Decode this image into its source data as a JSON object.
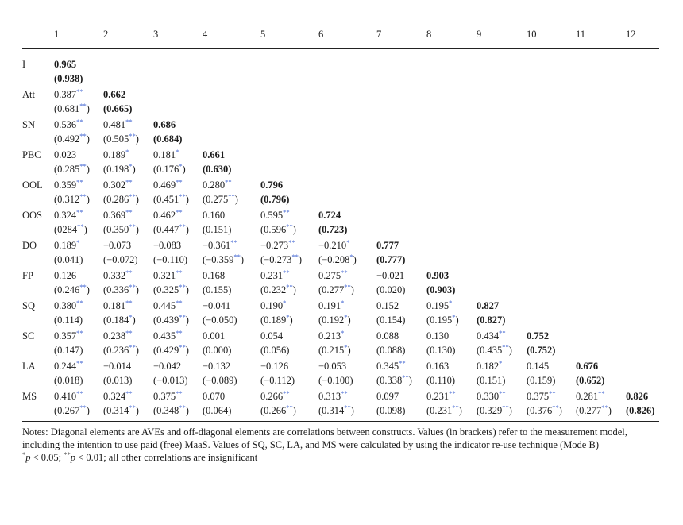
{
  "columns": [
    "",
    "1",
    "2",
    "3",
    "4",
    "5",
    "6",
    "7",
    "8",
    "9",
    "10",
    "11",
    "12"
  ],
  "rows": [
    {
      "label": "I",
      "cells": [
        {
          "v1": "0.965",
          "s1": "",
          "v2": "(0.938)",
          "s2": "",
          "bold": true
        }
      ]
    },
    {
      "label": "Att",
      "cells": [
        {
          "v1": "0.387",
          "s1": "**",
          "v2": "(0.681",
          "s2": "**",
          "close": ")"
        },
        {
          "v1": "0.662",
          "s1": "",
          "v2": "(0.665)",
          "s2": "",
          "bold": true
        }
      ]
    },
    {
      "label": "SN",
      "cells": [
        {
          "v1": "0.536",
          "s1": "**",
          "v2": "(0.492",
          "s2": "**",
          "close": ")"
        },
        {
          "v1": "0.481",
          "s1": "**",
          "v2": "(0.505",
          "s2": "**",
          "close": ")"
        },
        {
          "v1": "0.686",
          "s1": "",
          "v2": "(0.684)",
          "s2": "",
          "bold": true
        }
      ]
    },
    {
      "label": "PBC",
      "cells": [
        {
          "v1": "0.023",
          "s1": "",
          "v2": "(0.285",
          "s2": "**",
          "close": ")"
        },
        {
          "v1": "0.189",
          "s1": "*",
          "v2": "(0.198",
          "s2": "*",
          "close": ")"
        },
        {
          "v1": "0.181",
          "s1": "*",
          "v2": "(0.176",
          "s2": "*",
          "close": ")"
        },
        {
          "v1": "0.661",
          "s1": "",
          "v2": "(0.630)",
          "s2": "",
          "bold": true
        }
      ]
    },
    {
      "label": "OOL",
      "cells": [
        {
          "v1": "0.359",
          "s1": "**",
          "v2": "(0.312",
          "s2": "**",
          "close": ")"
        },
        {
          "v1": "0.302",
          "s1": "**",
          "v2": "(0.286",
          "s2": "**",
          "close": ")"
        },
        {
          "v1": "0.469",
          "s1": "**",
          "v2": "(0.451",
          "s2": "**",
          "close": ")"
        },
        {
          "v1": "0.280",
          "s1": "**",
          "v2": "(0.275",
          "s2": "**",
          "close": ")"
        },
        {
          "v1": "0.796",
          "s1": "",
          "v2": "(0.796)",
          "s2": "",
          "bold": true
        }
      ]
    },
    {
      "label": "OOS",
      "cells": [
        {
          "v1": "0.324",
          "s1": "**",
          "v2": "(0284",
          "s2": "**",
          "close": ")"
        },
        {
          "v1": "0.369",
          "s1": "**",
          "v2": "(0.350",
          "s2": "**",
          "close": ")"
        },
        {
          "v1": "0.462",
          "s1": "**",
          "v2": "(0.447",
          "s2": "**",
          "close": ")"
        },
        {
          "v1": "0.160",
          "s1": "",
          "v2": "(0.151)",
          "s2": ""
        },
        {
          "v1": "0.595",
          "s1": "**",
          "v2": "(0.596",
          "s2": "**",
          "close": ")"
        },
        {
          "v1": "0.724",
          "s1": "",
          "v2": "(0.723)",
          "s2": "",
          "bold": true
        }
      ]
    },
    {
      "label": "DO",
      "cells": [
        {
          "v1": "0.189",
          "s1": "*",
          "v2": "(0.041)",
          "s2": ""
        },
        {
          "v1": "−0.073",
          "s1": "",
          "v2": "(−0.072)",
          "s2": ""
        },
        {
          "v1": "−0.083",
          "s1": "",
          "v2": "(−0.110)",
          "s2": ""
        },
        {
          "v1": "−0.361",
          "s1": "**",
          "v2": "(−0.359",
          "s2": "**",
          "close": ")"
        },
        {
          "v1": "−0.273",
          "s1": "**",
          "v2": "(−0.273",
          "s2": "**",
          "close": ")"
        },
        {
          "v1": "−0.210",
          "s1": "*",
          "v2": "(−0.208",
          "s2": "*",
          "close": ")"
        },
        {
          "v1": "0.777",
          "s1": "",
          "v2": "(0.777)",
          "s2": "",
          "bold": true
        }
      ]
    },
    {
      "label": "FP",
      "cells": [
        {
          "v1": "0.126",
          "s1": "",
          "v2": "(0.246",
          "s2": "**",
          "close": ")"
        },
        {
          "v1": "0.332",
          "s1": "**",
          "v2": "(0.336",
          "s2": "**",
          "close": ")"
        },
        {
          "v1": "0.321",
          "s1": "**",
          "v2": "(0.325",
          "s2": "**",
          "close": ")"
        },
        {
          "v1": "0.168",
          "s1": "",
          "v2": "(0.155)",
          "s2": ""
        },
        {
          "v1": "0.231",
          "s1": "**",
          "v2": "(0.232",
          "s2": "**",
          "close": ")"
        },
        {
          "v1": "0.275",
          "s1": "**",
          "v2": "(0.277",
          "s2": "**",
          "close": ")"
        },
        {
          "v1": "−0.021",
          "s1": "",
          "v2": "(0.020)",
          "s2": ""
        },
        {
          "v1": "0.903",
          "s1": "",
          "v2": "(0.903)",
          "s2": "",
          "bold": true
        }
      ]
    },
    {
      "label": "SQ",
      "cells": [
        {
          "v1": "0.380",
          "s1": "**",
          "v2": "(0.114)",
          "s2": ""
        },
        {
          "v1": "0.181",
          "s1": "**",
          "v2": "(0.184",
          "s2": "*",
          "close": ")"
        },
        {
          "v1": "0.445",
          "s1": "**",
          "v2": "(0.439",
          "s2": "**",
          "close": ")"
        },
        {
          "v1": "−0.041",
          "s1": "",
          "v2": "(−0.050)",
          "s2": ""
        },
        {
          "v1": "0.190",
          "s1": "*",
          "v2": "(0.189",
          "s2": "*",
          "close": ")"
        },
        {
          "v1": "0.191",
          "s1": "*",
          "v2": "(0.192",
          "s2": "*",
          "close": ")"
        },
        {
          "v1": "0.152",
          "s1": "",
          "v2": "(0.154)",
          "s2": ""
        },
        {
          "v1": "0.195",
          "s1": "*",
          "v2": "(0.195",
          "s2": "*",
          "close": ")"
        },
        {
          "v1": "0.827",
          "s1": "",
          "v2": "(0.827)",
          "s2": "",
          "bold": true
        }
      ]
    },
    {
      "label": "SC",
      "cells": [
        {
          "v1": "0.357",
          "s1": "**",
          "v2": "(0.147)",
          "s2": ""
        },
        {
          "v1": "0.238",
          "s1": "**",
          "v2": "(0.236",
          "s2": "**",
          "close": ")"
        },
        {
          "v1": "0.435",
          "s1": "**",
          "v2": "(0.429",
          "s2": "**",
          "close": ")"
        },
        {
          "v1": "0.001",
          "s1": "",
          "v2": "(0.000)",
          "s2": ""
        },
        {
          "v1": "0.054",
          "s1": "",
          "v2": "(0.056)",
          "s2": ""
        },
        {
          "v1": "0.213",
          "s1": "*",
          "v2": "(0.215",
          "s2": "*",
          "close": ")"
        },
        {
          "v1": "0.088",
          "s1": "",
          "v2": "(0.088)",
          "s2": ""
        },
        {
          "v1": "0.130",
          "s1": "",
          "v2": "(0.130)",
          "s2": ""
        },
        {
          "v1": "0.434",
          "s1": "**",
          "v2": "(0.435",
          "s2": "**",
          "close": ")"
        },
        {
          "v1": "0.752",
          "s1": "",
          "v2": "(0.752)",
          "s2": "",
          "bold": true
        }
      ]
    },
    {
      "label": "LA",
      "cells": [
        {
          "v1": "0.244",
          "s1": "**",
          "v2": "(0.018)",
          "s2": ""
        },
        {
          "v1": "−0.014",
          "s1": "",
          "v2": "(0.013)",
          "s2": ""
        },
        {
          "v1": "−0.042",
          "s1": "",
          "v2": "(−0.013)",
          "s2": ""
        },
        {
          "v1": "−0.132",
          "s1": "",
          "v2": "(−0.089)",
          "s2": ""
        },
        {
          "v1": "−0.126",
          "s1": "",
          "v2": "(−0.112)",
          "s2": ""
        },
        {
          "v1": "−0.053",
          "s1": "",
          "v2": "(−0.100)",
          "s2": ""
        },
        {
          "v1": "0.345",
          "s1": "**",
          "v2": "(0.338",
          "s2": "**",
          "close": ")"
        },
        {
          "v1": "0.163",
          "s1": "",
          "v2": "(0.110)",
          "s2": ""
        },
        {
          "v1": "0.182",
          "s1": "*",
          "v2": "(0.151)",
          "s2": ""
        },
        {
          "v1": "0.145",
          "s1": "",
          "v2": "(0.159)",
          "s2": ""
        },
        {
          "v1": "0.676",
          "s1": "",
          "v2": "(0.652)",
          "s2": "",
          "bold": true
        }
      ]
    },
    {
      "label": "MS",
      "cells": [
        {
          "v1": "0.410",
          "s1": "**",
          "v2": "(0.267",
          "s2": "**",
          "close": ")"
        },
        {
          "v1": "0.324",
          "s1": "**",
          "v2": "(0.314",
          "s2": "**",
          "close": ")"
        },
        {
          "v1": "0.375",
          "s1": "**",
          "v2": "(0.348",
          "s2": "**",
          "close": ")"
        },
        {
          "v1": "0.070",
          "s1": "",
          "v2": "(0.064)",
          "s2": ""
        },
        {
          "v1": "0.266",
          "s1": "**",
          "v2": "(0.266",
          "s2": "**",
          "close": ")"
        },
        {
          "v1": "0.313",
          "s1": "**",
          "v2": "(0.314",
          "s2": "**",
          "close": ")"
        },
        {
          "v1": "0.097",
          "s1": "",
          "v2": "(0.098)",
          "s2": ""
        },
        {
          "v1": "0.231",
          "s1": "**",
          "v2": "(0.231",
          "s2": "**",
          "close": ")"
        },
        {
          "v1": "0.330",
          "s1": "**",
          "v2": "(0.329",
          "s2": "**",
          "close": ")"
        },
        {
          "v1": "0.375",
          "s1": "**",
          "v2": "(0.376",
          "s2": "**",
          "close": ")"
        },
        {
          "v1": "0.281",
          "s1": "**",
          "v2": "(0.277",
          "s2": "**",
          "close": ")"
        },
        {
          "v1": "0.826",
          "s1": "",
          "v2": "(0.826)",
          "s2": "",
          "bold": true
        }
      ]
    }
  ],
  "notes": {
    "main": "Notes: Diagonal elements are AVEs and off-diagonal elements are correlations between constructs. Values (in brackets) refer to the measurement model, including the intention to use paid (free) MaaS. Values of SQ, SC, LA, and MS were calculated by using the indicator re-use technique (Mode B)",
    "sig_star1": "*",
    "sig_p1": "p",
    "sig_text1": " < 0.05;   ",
    "sig_star2": "**",
    "sig_p2": "p",
    "sig_text2": " < 0.01; all other correlations are insignificant"
  },
  "colors": {
    "significance_star": "#3a5fd0",
    "text": "#1a1a1a",
    "rule": "#222222"
  }
}
